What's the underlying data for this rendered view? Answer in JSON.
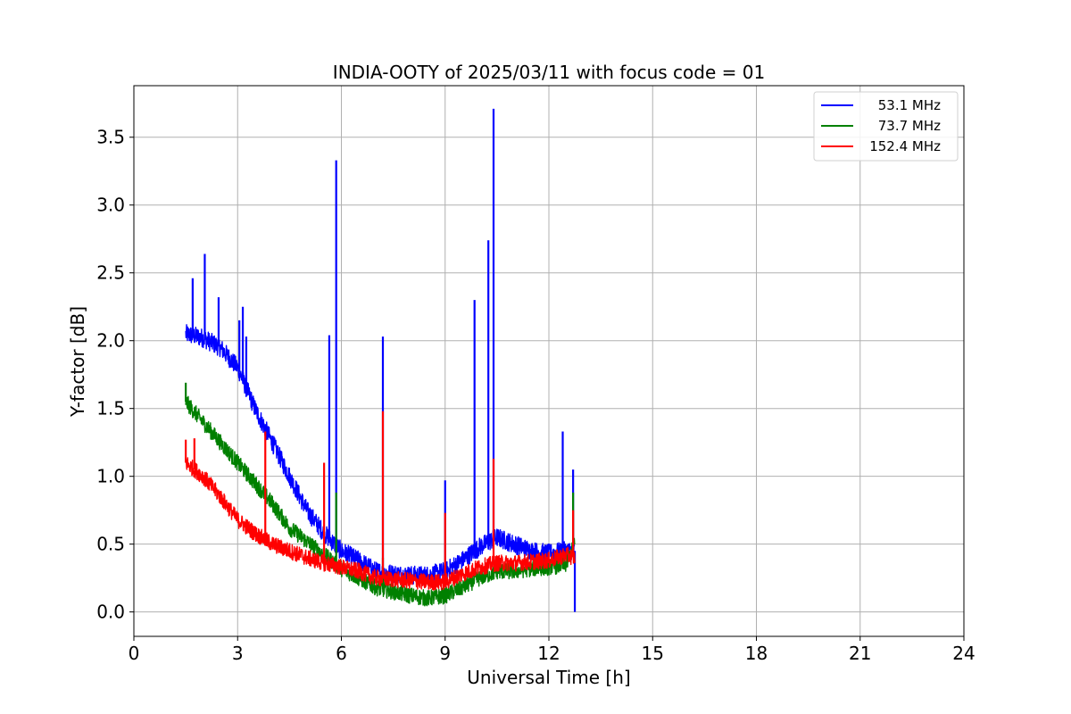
{
  "chart_data": {
    "type": "line",
    "title": "INDIA-OOTY of 2025/03/11 with focus code = 01",
    "xlabel": "Universal Time [h]",
    "ylabel": "Y-factor [dB]",
    "xlim": [
      0,
      24
    ],
    "ylim": [
      -0.18,
      3.88
    ],
    "xticks": [
      0,
      3,
      6,
      9,
      12,
      15,
      18,
      21,
      24
    ],
    "xtick_labels": [
      "0",
      "3",
      "6",
      "9",
      "12",
      "15",
      "18",
      "21",
      "24"
    ],
    "yticks": [
      0.0,
      0.5,
      1.0,
      1.5,
      2.0,
      2.5,
      3.0,
      3.5
    ],
    "ytick_labels": [
      "0.0",
      "0.5",
      "1.0",
      "1.5",
      "2.0",
      "2.5",
      "3.0",
      "3.5"
    ],
    "grid": true,
    "legend_position": "top-right",
    "series": [
      {
        "name": "53.1 MHz",
        "color": "#0000ff",
        "x": [
          1.5,
          2.0,
          2.5,
          3.0,
          3.5,
          4.0,
          4.5,
          5.0,
          5.5,
          6.0,
          6.5,
          7.0,
          7.5,
          8.0,
          8.5,
          9.0,
          9.5,
          10.0,
          10.5,
          11.0,
          11.5,
          12.0,
          12.5,
          12.75
        ],
        "values": [
          2.05,
          2.02,
          1.95,
          1.8,
          1.5,
          1.25,
          1.0,
          0.75,
          0.58,
          0.45,
          0.38,
          0.3,
          0.28,
          0.27,
          0.27,
          0.3,
          0.38,
          0.48,
          0.55,
          0.5,
          0.45,
          0.43,
          0.45,
          0.45
        ],
        "spikes": [
          [
            1.7,
            2.46
          ],
          [
            2.05,
            2.64
          ],
          [
            2.45,
            2.32
          ],
          [
            3.05,
            2.15
          ],
          [
            3.15,
            2.25
          ],
          [
            3.25,
            2.03
          ],
          [
            5.65,
            2.04
          ],
          [
            5.85,
            3.33
          ],
          [
            7.2,
            2.03
          ],
          [
            9.0,
            0.97
          ],
          [
            9.85,
            2.3
          ],
          [
            10.25,
            2.74
          ],
          [
            10.4,
            3.71
          ],
          [
            12.4,
            1.33
          ],
          [
            12.7,
            1.05
          ],
          [
            12.75,
            0.0
          ]
        ]
      },
      {
        "name": "73.7 MHz",
        "color": "#008000",
        "x": [
          1.5,
          2.0,
          2.5,
          3.0,
          3.5,
          4.0,
          4.5,
          5.0,
          5.5,
          6.0,
          6.5,
          7.0,
          7.5,
          8.0,
          8.5,
          9.0,
          9.5,
          10.0,
          10.5,
          11.0,
          11.5,
          12.0,
          12.5,
          12.75
        ],
        "values": [
          1.55,
          1.4,
          1.25,
          1.1,
          0.95,
          0.8,
          0.62,
          0.52,
          0.42,
          0.32,
          0.25,
          0.18,
          0.15,
          0.12,
          0.1,
          0.12,
          0.18,
          0.25,
          0.3,
          0.3,
          0.32,
          0.33,
          0.35,
          0.5
        ],
        "spikes": [
          [
            1.5,
            1.69
          ],
          [
            5.85,
            0.88
          ],
          [
            7.2,
            0.4
          ],
          [
            12.7,
            0.88
          ]
        ]
      },
      {
        "name": "152.4 MHz",
        "color": "#ff0000",
        "x": [
          1.5,
          2.0,
          2.5,
          3.0,
          3.5,
          4.0,
          4.5,
          5.0,
          5.5,
          6.0,
          6.5,
          7.0,
          7.5,
          8.0,
          8.5,
          9.0,
          9.5,
          10.0,
          10.5,
          11.0,
          11.5,
          12.0,
          12.5,
          12.75
        ],
        "values": [
          1.1,
          1.0,
          0.85,
          0.68,
          0.58,
          0.5,
          0.45,
          0.4,
          0.36,
          0.33,
          0.3,
          0.25,
          0.24,
          0.23,
          0.22,
          0.22,
          0.28,
          0.33,
          0.36,
          0.36,
          0.37,
          0.38,
          0.42,
          0.4
        ],
        "spikes": [
          [
            1.5,
            1.27
          ],
          [
            1.75,
            1.28
          ],
          [
            3.8,
            1.33
          ],
          [
            5.5,
            1.1
          ],
          [
            7.2,
            1.48
          ],
          [
            9.0,
            0.73
          ],
          [
            10.4,
            1.13
          ],
          [
            12.7,
            0.75
          ]
        ]
      }
    ]
  }
}
